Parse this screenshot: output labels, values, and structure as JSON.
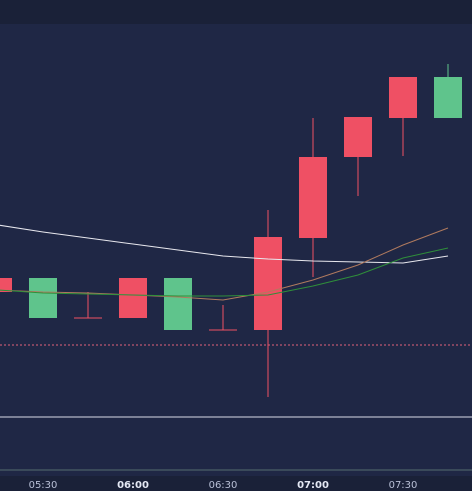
{
  "chart_data": {
    "type": "candlestick",
    "categories": [
      null,
      "05:30",
      null,
      "06:00",
      null,
      "06:30",
      null,
      "07:00",
      null,
      "07:30",
      null
    ],
    "bold_categories": [
      "06:00",
      "07:00"
    ],
    "open": [
      208,
      222,
      182,
      182,
      222,
      170,
      170,
      262,
      343,
      382,
      423
    ],
    "high": [
      222,
      222,
      208,
      222,
      222,
      195,
      290,
      382,
      383,
      423,
      436
    ],
    "low": [
      208,
      182,
      182,
      182,
      170,
      170,
      103,
      223,
      304,
      344,
      382
    ],
    "close": [
      222,
      182,
      182,
      222,
      170,
      170,
      263,
      343,
      383,
      423,
      382
    ],
    "up_color": "#ef5064",
    "down_color": "#5fc48c",
    "lines": [
      {
        "color": "#e8e8ee",
        "values": [
          275,
          268,
          262,
          256,
          250,
          244,
          241,
          239,
          238,
          237,
          244
        ]
      },
      {
        "color": "#b07a5e",
        "values": [
          210,
          208,
          207,
          205,
          203,
          200,
          208,
          220,
          235,
          255,
          272
        ]
      },
      {
        "color": "#2f8f3a",
        "values": [
          210,
          207,
          206,
          205,
          204,
          204,
          205,
          214,
          225,
          242,
          252
        ]
      }
    ],
    "hline": {
      "value": 155,
      "color": "#e0607a"
    },
    "ylim": [
      85,
      473
    ]
  }
}
